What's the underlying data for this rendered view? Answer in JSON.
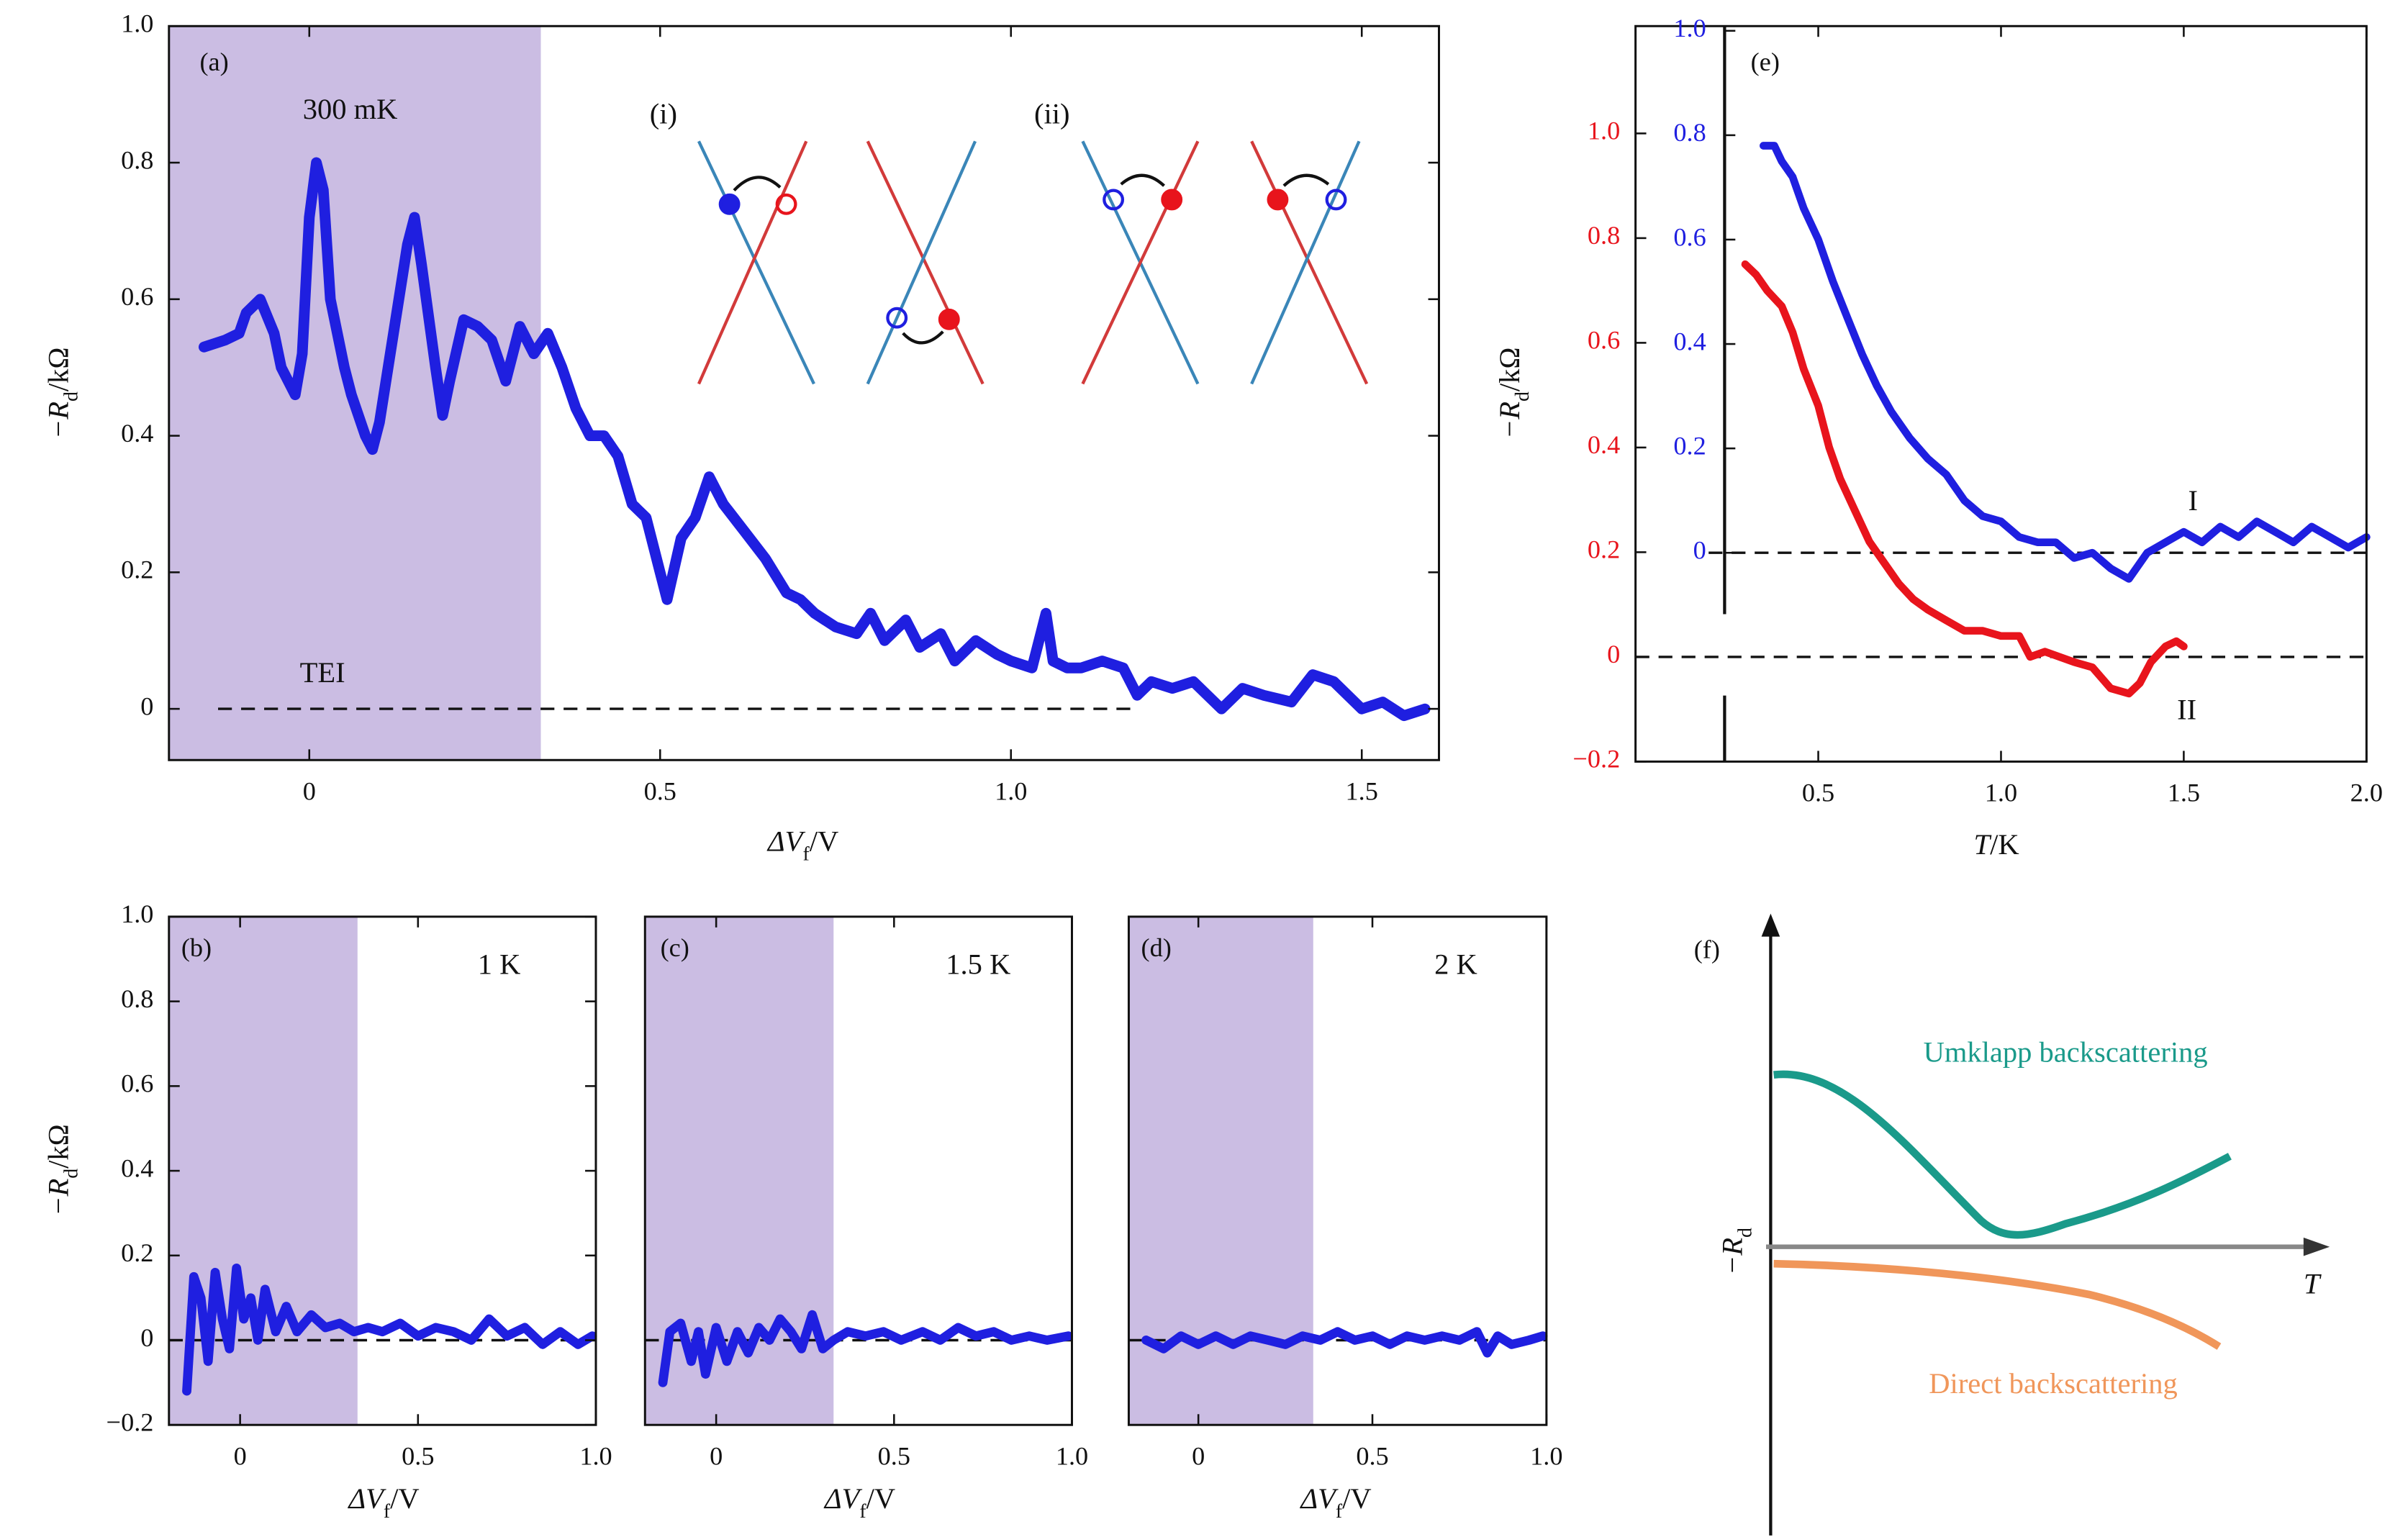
{
  "chart_data": [
    {
      "type": "line",
      "annotations": [
        "(a)",
        "300 mK",
        "TEI",
        "(i)",
        "(ii)"
      ],
      "xlabel": [
        "ΔV",
        "f",
        "/V"
      ],
      "ylabel": [
        "−R",
        "d",
        "/kΩ"
      ],
      "xlim": [
        -0.2,
        1.61
      ],
      "ylim": [
        -0.075,
        1.0
      ],
      "xticks": [
        0,
        0.5,
        {
          "value": 1,
          "label": "1.0"
        },
        1.5
      ],
      "yticks": [
        0,
        0.2,
        0.4,
        0.6,
        0.8,
        {
          "value": 1,
          "label": "1.0"
        }
      ],
      "highlight_x": [
        -0.2,
        0.33
      ],
      "highlight_color": "#cbbde3",
      "hlines": [
        {
          "y": 0,
          "x": [
            -0.13,
            1.18
          ]
        }
      ],
      "x": [
        -0.15,
        -0.12,
        -0.1,
        -0.09,
        -0.07,
        -0.05,
        -0.04,
        -0.02,
        -0.01,
        0,
        0.01,
        0.02,
        0.03,
        0.05,
        0.06,
        0.08,
        0.09,
        0.1,
        0.12,
        0.14,
        0.15,
        0.16,
        0.18,
        0.19,
        0.2,
        0.22,
        0.24,
        0.26,
        0.28,
        0.29,
        0.3,
        0.32,
        0.34,
        0.36,
        0.38,
        0.4,
        0.42,
        0.44,
        0.46,
        0.48,
        0.5,
        0.51,
        0.53,
        0.55,
        0.57,
        0.59,
        0.62,
        0.65,
        0.68,
        0.7,
        0.72,
        0.75,
        0.78,
        0.8,
        0.82,
        0.85,
        0.87,
        0.9,
        0.92,
        0.95,
        0.98,
        1.0,
        1.03,
        1.05,
        1.06,
        1.08,
        1.1,
        1.13,
        1.16,
        1.18,
        1.2,
        1.23,
        1.26,
        1.3,
        1.33,
        1.36,
        1.4,
        1.43,
        1.46,
        1.5,
        1.53,
        1.56,
        1.59
      ],
      "series": [
        {
          "color": "#1f1fe0",
          "values": [
            0.53,
            0.54,
            0.55,
            0.58,
            0.6,
            0.55,
            0.5,
            0.46,
            0.52,
            0.72,
            0.8,
            0.76,
            0.6,
            0.5,
            0.46,
            0.4,
            0.38,
            0.42,
            0.55,
            0.68,
            0.72,
            0.65,
            0.5,
            0.43,
            0.48,
            0.57,
            0.56,
            0.54,
            0.48,
            0.52,
            0.56,
            0.52,
            0.55,
            0.5,
            0.44,
            0.4,
            0.4,
            0.37,
            0.3,
            0.28,
            0.2,
            0.16,
            0.25,
            0.28,
            0.34,
            0.3,
            0.26,
            0.22,
            0.17,
            0.16,
            0.14,
            0.12,
            0.11,
            0.14,
            0.1,
            0.13,
            0.09,
            0.11,
            0.07,
            0.1,
            0.08,
            0.07,
            0.06,
            0.14,
            0.07,
            0.06,
            0.06,
            0.07,
            0.06,
            0.02,
            0.04,
            0.03,
            0.04,
            0,
            0.03,
            0.02,
            0.01,
            0.05,
            0.04,
            0,
            0.01,
            -0.01,
            0
          ]
        }
      ]
    },
    {
      "type": "line",
      "annotations": [
        "(b)",
        "1 K"
      ],
      "xlabel": [
        "ΔV",
        "f",
        "/V"
      ],
      "ylabel": [
        "−R",
        "d",
        "/kΩ"
      ],
      "xlim": [
        -0.2,
        1.0
      ],
      "ylim": [
        -0.2,
        1.0
      ],
      "xticks": [
        0,
        0.5,
        {
          "value": 1,
          "label": "1.0"
        }
      ],
      "yticks": [
        {
          "value": -0.2,
          "label": "−0.2"
        },
        0,
        0.2,
        0.4,
        0.6,
        0.8,
        {
          "value": 1,
          "label": "1.0"
        }
      ],
      "highlight_x": [
        -0.2,
        0.33
      ],
      "highlight_color": "#cbbde3",
      "hlines": [
        {
          "y": 0
        }
      ],
      "x": [
        -0.15,
        -0.13,
        -0.11,
        -0.09,
        -0.07,
        -0.05,
        -0.03,
        -0.01,
        0.01,
        0.03,
        0.05,
        0.07,
        0.1,
        0.13,
        0.16,
        0.2,
        0.24,
        0.28,
        0.32,
        0.36,
        0.4,
        0.45,
        0.5,
        0.55,
        0.6,
        0.65,
        0.7,
        0.75,
        0.8,
        0.85,
        0.9,
        0.95,
        0.99
      ],
      "series": [
        {
          "color": "#1f1fe0",
          "values": [
            -0.12,
            0.15,
            0.1,
            -0.05,
            0.16,
            0.05,
            -0.02,
            0.17,
            0.05,
            0.1,
            0,
            0.12,
            0.02,
            0.08,
            0.02,
            0.06,
            0.03,
            0.04,
            0.02,
            0.03,
            0.02,
            0.04,
            0.01,
            0.03,
            0.02,
            0,
            0.05,
            0.01,
            0.03,
            -0.01,
            0.02,
            -0.01,
            0.01
          ]
        }
      ]
    },
    {
      "type": "line",
      "annotations": [
        "(c)",
        "1.5 K"
      ],
      "xlabel": [
        "ΔV",
        "f",
        "/V"
      ],
      "xlim": [
        -0.2,
        1.0
      ],
      "ylim": [
        -0.2,
        1.0
      ],
      "xticks": [
        0,
        0.5,
        {
          "value": 1,
          "label": "1.0"
        }
      ],
      "highlight_x": [
        -0.2,
        0.33
      ],
      "highlight_color": "#cbbde3",
      "hlines": [
        {
          "y": 0
        }
      ],
      "x": [
        -0.15,
        -0.13,
        -0.1,
        -0.07,
        -0.05,
        -0.03,
        0,
        0.03,
        0.06,
        0.09,
        0.12,
        0.15,
        0.18,
        0.21,
        0.24,
        0.27,
        0.3,
        0.33,
        0.37,
        0.42,
        0.47,
        0.52,
        0.58,
        0.63,
        0.68,
        0.73,
        0.78,
        0.83,
        0.88,
        0.93,
        0.99
      ],
      "series": [
        {
          "color": "#1f1fe0",
          "values": [
            -0.1,
            0.02,
            0.04,
            -0.05,
            0.02,
            -0.08,
            0.03,
            -0.05,
            0.02,
            -0.03,
            0.03,
            0,
            0.05,
            0.02,
            -0.02,
            0.06,
            -0.02,
            0,
            0.02,
            0.01,
            0.02,
            0,
            0.02,
            0,
            0.03,
            0.01,
            0.02,
            0,
            0.01,
            0,
            0.01
          ]
        }
      ]
    },
    {
      "type": "line",
      "annotations": [
        "(d)",
        "2 K"
      ],
      "xlabel": [
        "ΔV",
        "f",
        "/V"
      ],
      "xlim": [
        -0.2,
        1.0
      ],
      "ylim": [
        -0.2,
        1.0
      ],
      "xticks": [
        0,
        0.5,
        {
          "value": 1,
          "label": "1.0"
        }
      ],
      "highlight_x": [
        -0.2,
        0.33
      ],
      "highlight_color": "#cbbde3",
      "hlines": [
        {
          "y": 0
        }
      ],
      "x": [
        -0.15,
        -0.1,
        -0.05,
        0,
        0.05,
        0.1,
        0.15,
        0.2,
        0.25,
        0.3,
        0.35,
        0.4,
        0.45,
        0.5,
        0.55,
        0.6,
        0.65,
        0.7,
        0.75,
        0.8,
        0.83,
        0.86,
        0.9,
        0.95,
        0.99
      ],
      "series": [
        {
          "color": "#1f1fe0",
          "values": [
            0,
            -0.02,
            0.01,
            -0.01,
            0.01,
            -0.01,
            0.01,
            0,
            -0.01,
            0.01,
            0,
            0.02,
            0,
            0.01,
            -0.01,
            0.01,
            0,
            0.01,
            0,
            0.02,
            -0.03,
            0.01,
            -0.01,
            0,
            0.01
          ]
        }
      ]
    },
    {
      "type": "line",
      "annotations": [
        "(e)",
        "I",
        "II"
      ],
      "xlabel": [
        "T",
        "/K"
      ],
      "ylabel": [
        "−R",
        "d",
        "/kΩ"
      ],
      "xlim": [
        0,
        2.0
      ],
      "ylim": [
        -0.2,
        1.205
      ],
      "y2lim": [
        -0.4,
        1.009
      ],
      "ytick_color": "#e8141c",
      "y2tick_color": "#1f1fe0",
      "xticks": [
        0.5,
        {
          "value": 1,
          "label": "1.0"
        },
        1.5,
        {
          "value": 2,
          "label": "2.0"
        }
      ],
      "yticks": [
        {
          "value": -0.2,
          "label": "−0.2"
        },
        0,
        0.2,
        0.4,
        0.6,
        0.8,
        {
          "value": 1,
          "label": "1.0"
        }
      ],
      "y2ticks": [
        0,
        0.2,
        0.4,
        0.6,
        0.8,
        {
          "value": 1,
          "label": "1.0"
        }
      ],
      "hlines": [
        {
          "y": 0
        },
        {
          "y": 0,
          "axis": "y2",
          "x": [
            0.2,
            2.0
          ]
        }
      ],
      "series": [
        {
          "color": "#1f1fe0",
          "axis": "y2",
          "x": [
            0.35,
            0.38,
            0.4,
            0.43,
            0.46,
            0.5,
            0.54,
            0.58,
            0.62,
            0.66,
            0.7,
            0.75,
            0.8,
            0.85,
            0.9,
            0.95,
            1.0,
            1.05,
            1.1,
            1.15,
            1.2,
            1.25,
            1.3,
            1.35,
            1.4,
            1.45,
            1.5,
            1.55,
            1.6,
            1.65,
            1.7,
            1.75,
            1.8,
            1.85,
            1.9,
            1.95,
            2.0
          ],
          "values": [
            0.78,
            0.78,
            0.75,
            0.72,
            0.66,
            0.6,
            0.52,
            0.45,
            0.38,
            0.32,
            0.27,
            0.22,
            0.18,
            0.15,
            0.1,
            0.07,
            0.06,
            0.03,
            0.02,
            0.02,
            -0.01,
            0,
            -0.03,
            -0.05,
            0,
            0.02,
            0.04,
            0.02,
            0.05,
            0.03,
            0.06,
            0.04,
            0.02,
            0.05,
            0.03,
            0.01,
            0.03
          ]
        },
        {
          "color": "#e8141c",
          "x": [
            0.3,
            0.33,
            0.36,
            0.4,
            0.43,
            0.46,
            0.5,
            0.53,
            0.56,
            0.6,
            0.64,
            0.68,
            0.72,
            0.76,
            0.8,
            0.85,
            0.9,
            0.95,
            1.0,
            1.05,
            1.08,
            1.12,
            1.16,
            1.2,
            1.25,
            1.3,
            1.35,
            1.38,
            1.41,
            1.45,
            1.48,
            1.5
          ],
          "values": [
            0.75,
            0.73,
            0.7,
            0.67,
            0.62,
            0.55,
            0.48,
            0.4,
            0.34,
            0.28,
            0.22,
            0.18,
            0.14,
            0.11,
            0.09,
            0.07,
            0.05,
            0.05,
            0.04,
            0.04,
            0,
            0.01,
            0,
            -0.01,
            -0.02,
            -0.06,
            -0.07,
            -0.05,
            -0.01,
            0.02,
            0.03,
            0.02
          ]
        }
      ]
    }
  ],
  "schematic": {
    "label": "(f)",
    "ylabel": [
      "−R",
      "d"
    ],
    "xlabel": "T",
    "curves": [
      "Umklapp backscattering",
      "Direct backscattering"
    ]
  }
}
